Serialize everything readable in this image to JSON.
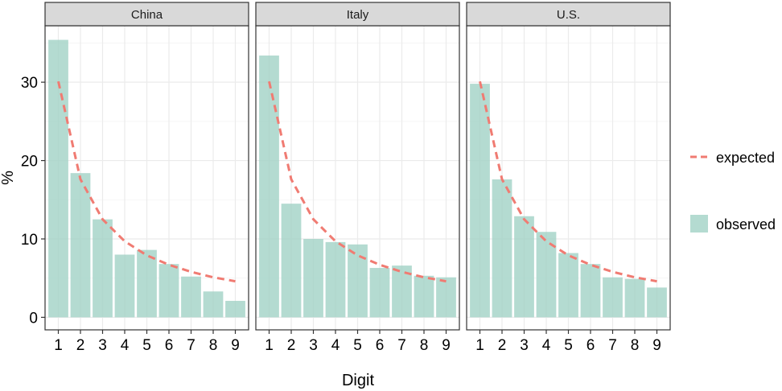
{
  "chart_data": {
    "type": "bar",
    "facets": [
      "China",
      "Italy",
      "U.S."
    ],
    "categories": [
      "1",
      "2",
      "3",
      "4",
      "5",
      "6",
      "7",
      "8",
      "9"
    ],
    "series": [
      {
        "name": "observed",
        "kind": "bar",
        "values_by_facet": {
          "China": [
            35.4,
            18.4,
            12.5,
            8.0,
            8.6,
            6.8,
            5.2,
            3.3,
            2.1
          ],
          "Italy": [
            33.4,
            14.5,
            10.0,
            9.6,
            9.3,
            6.3,
            6.6,
            5.3,
            5.1
          ],
          "U.S.": [
            29.8,
            17.6,
            12.9,
            10.9,
            8.2,
            6.8,
            5.1,
            4.9,
            3.8
          ]
        }
      },
      {
        "name": "expected",
        "kind": "line",
        "style": "dashed",
        "values": [
          30.1,
          17.6,
          12.5,
          9.7,
          7.9,
          6.7,
          5.8,
          5.1,
          4.6
        ]
      }
    ],
    "title": "",
    "xlabel": "Digit",
    "ylabel": "%",
    "ylim": [
      -1.6,
      37.2
    ],
    "yticks": [
      0,
      10,
      20,
      30
    ],
    "grid": true,
    "legend": {
      "position": "right",
      "entries": [
        "expected",
        "observed"
      ]
    },
    "colors": {
      "observed": "#9fd1c4",
      "expected": "#f07b72",
      "strip_fill": "#d9d9d9",
      "grid": "#ebebeb",
      "panel_border": "#333333"
    }
  }
}
